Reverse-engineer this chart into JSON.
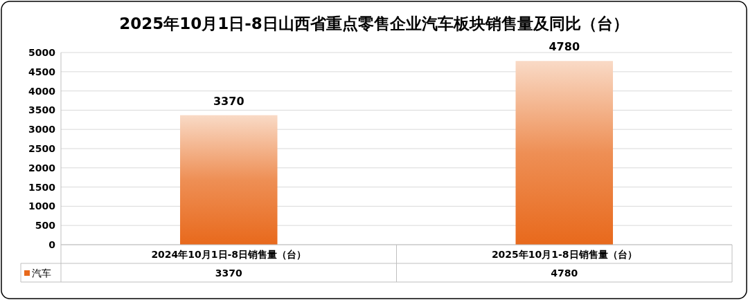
{
  "chart_data": {
    "type": "bar",
    "title": "2025年10月1日-8日山西省重点零售企业汽车板块销售量及同比（台）",
    "categories": [
      "2024年10月1日-8日销售量（台）",
      "2025年10月1-8日销售量（台）"
    ],
    "series": [
      {
        "name": "汽车",
        "color": "#e8691c",
        "values": [
          3370,
          4780
        ],
        "value_labels": [
          "3370",
          "4780"
        ]
      }
    ],
    "ylim": [
      0,
      5000
    ],
    "yticks": [
      0,
      500,
      1000,
      1500,
      2000,
      2500,
      3000,
      3500,
      4000,
      4500,
      5000
    ],
    "annotations": [
      "3370",
      "4780"
    ],
    "grid": "y",
    "legend": "bottom",
    "data_labels": true
  }
}
